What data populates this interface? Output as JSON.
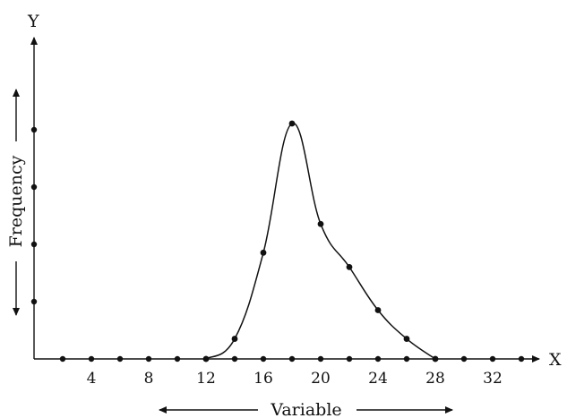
{
  "chart_data": {
    "type": "line",
    "title": "",
    "xlabel": "Variable",
    "ylabel": "Frequency",
    "x_axis_name": "X",
    "y_axis_name": "Y",
    "xlim": [
      0,
      34
    ],
    "ylim": [
      0,
      8.2
    ],
    "x_tick_labels": [
      "4",
      "8",
      "12",
      "16",
      "20",
      "24",
      "28",
      "32"
    ],
    "x_ticks": [
      4,
      8,
      12,
      16,
      20,
      24,
      28,
      32
    ],
    "x_axis_dots": [
      2,
      4,
      6,
      8,
      10,
      12,
      14,
      16,
      18,
      20,
      22,
      24,
      26,
      28,
      30,
      32,
      34
    ],
    "y_axis_dots": [
      1,
      2,
      3,
      4
    ],
    "grid": false,
    "series": [
      {
        "x": [
          12,
          14,
          16,
          18,
          20,
          22,
          24,
          26,
          28
        ],
        "y": [
          0,
          0.7,
          3.7,
          8.2,
          4.7,
          3.2,
          1.7,
          0.7,
          0
        ]
      }
    ]
  }
}
